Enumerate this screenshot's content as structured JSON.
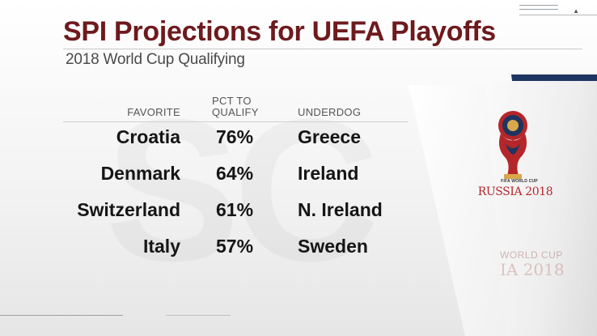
{
  "header": {
    "title": "SPI Projections for UEFA Playoffs",
    "subtitle": "2018 World Cup Qualifying"
  },
  "table": {
    "headers": {
      "favorite": "FAVORITE",
      "pct_line1": "PCT TO",
      "pct_line2": "QUALIFY",
      "underdog": "UNDERDOG"
    },
    "rows": [
      {
        "favorite": "Croatia",
        "pct": "76%",
        "underdog": "Greece"
      },
      {
        "favorite": "Denmark",
        "pct": "64%",
        "underdog": "Ireland"
      },
      {
        "favorite": "Switzerland",
        "pct": "61%",
        "underdog": "N. Ireland"
      },
      {
        "favorite": "Italy",
        "pct": "57%",
        "underdog": "Sweden"
      }
    ]
  },
  "branding": {
    "logo_small": "FIFA WORLD CUP",
    "logo_main": "RUSSIA 2018",
    "ghost_line1": "WORLD CUP",
    "ghost_line2": "IA 2018",
    "background_ghost": "SC"
  },
  "colors": {
    "title": "#6e1a1d",
    "accent_red": "#b4262a",
    "band_blue": "#2b4a86"
  },
  "icons": [
    "fifa-world-cup-2018-logo",
    "collapse-arrow-icon"
  ]
}
